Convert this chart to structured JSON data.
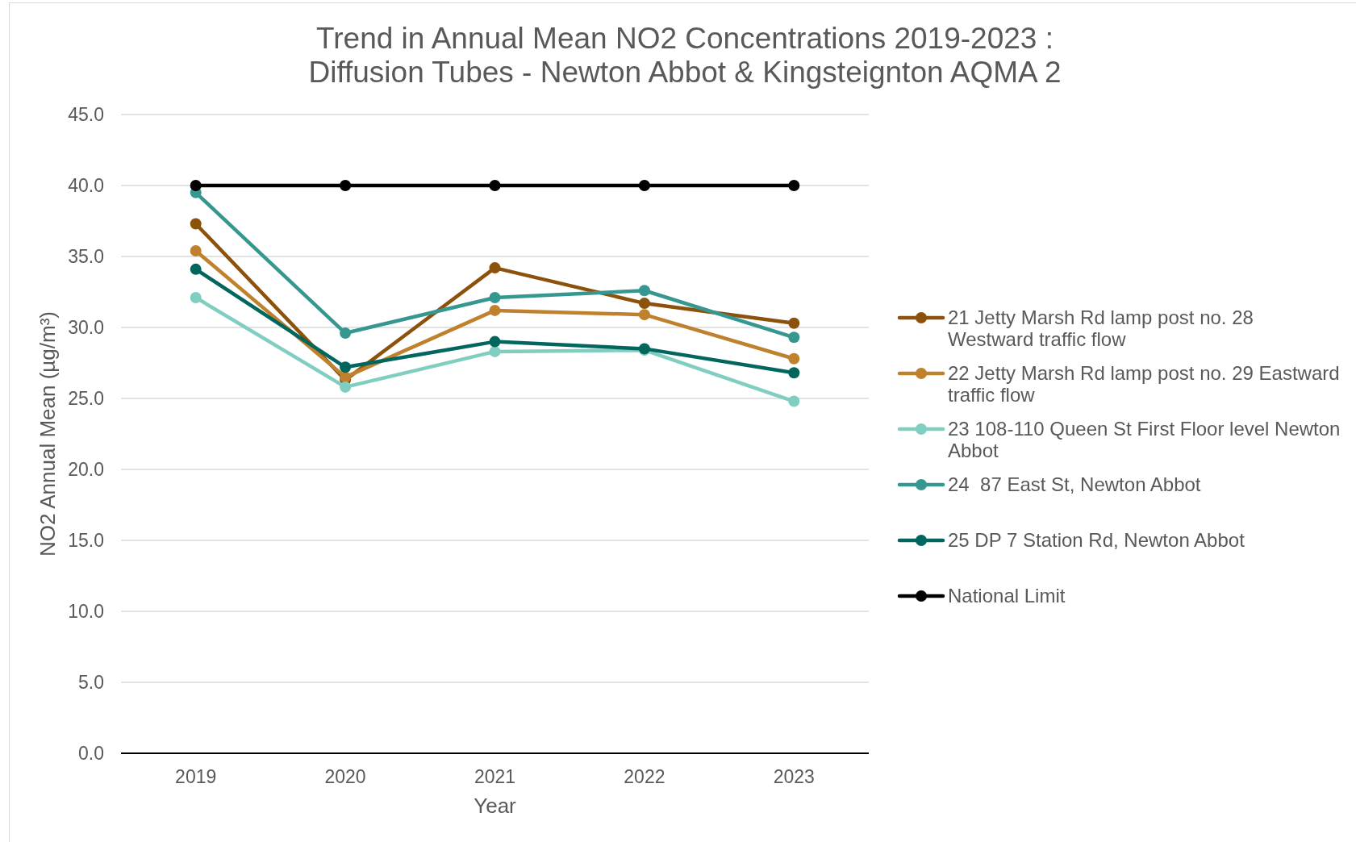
{
  "chart_data": {
    "type": "line",
    "title": "Trend in Annual Mean NO2 Concentrations 2019-2023 :\nDiffusion Tubes - Newton Abbot & Kingsteignton AQMA 2",
    "xlabel": "Year",
    "ylabel": "NO2 Annual Mean (µg/m³)",
    "categories": [
      "2019",
      "2020",
      "2021",
      "2022",
      "2023"
    ],
    "series": [
      {
        "name": "21 Jetty Marsh Rd lamp post no. 28 Westward traffic flow",
        "color": "#8c510a",
        "values": [
          37.3,
          26.3,
          34.2,
          31.7,
          30.3
        ]
      },
      {
        "name": "22 Jetty Marsh Rd lamp post no. 29 Eastward traffic flow",
        "color": "#bf812d",
        "values": [
          35.4,
          26.5,
          31.2,
          30.9,
          27.8
        ]
      },
      {
        "name": "23 108-110 Queen St First Floor level Newton Abbot",
        "color": "#80cdc1",
        "values": [
          32.1,
          25.8,
          28.3,
          28.4,
          24.8
        ]
      },
      {
        "name": "24  87 East St, Newton Abbot",
        "color": "#35978f",
        "values": [
          39.5,
          29.6,
          32.1,
          32.6,
          29.3
        ]
      },
      {
        "name": "25 DP 7 Station Rd, Newton Abbot",
        "color": "#01665e",
        "values": [
          34.1,
          27.2,
          29.0,
          28.5,
          26.8
        ]
      },
      {
        "name": "National Limit",
        "color": "#000000",
        "values": [
          40,
          40,
          40,
          40,
          40
        ]
      }
    ],
    "ylim": [
      0,
      45
    ],
    "yticks": [
      {
        "value": 0,
        "label": "0.0"
      },
      {
        "value": 5,
        "label": "5.0"
      },
      {
        "value": 10,
        "label": "10.0"
      },
      {
        "value": 15,
        "label": "15.0"
      },
      {
        "value": 20,
        "label": "20.0"
      },
      {
        "value": 25,
        "label": "25.0"
      },
      {
        "value": 30,
        "label": "30.0"
      },
      {
        "value": 35,
        "label": "35.0"
      },
      {
        "value": 40,
        "label": "40.0"
      },
      {
        "value": 45,
        "label": "45.0"
      }
    ],
    "grid": "y",
    "legend": "right",
    "marker": "circle",
    "line_style": "solid"
  }
}
